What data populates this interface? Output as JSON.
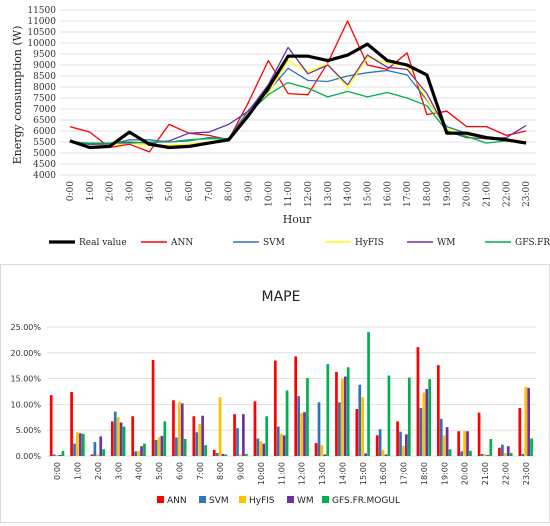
{
  "chart_data": [
    {
      "type": "line",
      "title": "",
      "xlabel": "Hour",
      "ylabel": "Energy consumption (W)",
      "ylim": [
        4000,
        11500
      ],
      "yticks": [
        "4000",
        "4500",
        "5000",
        "5500",
        "6000",
        "6500",
        "7000",
        "7500",
        "8000",
        "8500",
        "9000",
        "9500",
        "10000",
        "10500",
        "11000",
        "11500"
      ],
      "categories": [
        "0:00",
        "1:00",
        "2:00",
        "3:00",
        "4:00",
        "5:00",
        "6:00",
        "7:00",
        "8:00",
        "9:00",
        "10:00",
        "11:00",
        "12:00",
        "13:00",
        "14:00",
        "15:00",
        "16:00",
        "17:00",
        "18:00",
        "19:00",
        "20:00",
        "21:00",
        "22:00",
        "23:00"
      ],
      "grid": true,
      "legend": "bottom",
      "series": [
        {
          "name": "Real value",
          "color": "#000000",
          "values": [
            5550,
            5250,
            5300,
            5950,
            5400,
            5250,
            5300,
            5450,
            5600,
            6700,
            7950,
            9400,
            9400,
            9200,
            9450,
            9950,
            9200,
            9000,
            8550,
            5900,
            5900,
            5700,
            5600,
            5450
          ]
        },
        {
          "name": "ANN",
          "color": "#ff0000",
          "values": [
            6200,
            5950,
            5250,
            5400,
            5050,
            6300,
            5900,
            5800,
            5600,
            7300,
            9200,
            7700,
            7650,
            9100,
            11000,
            9000,
            8800,
            9550,
            6750,
            6900,
            6200,
            6200,
            5800,
            6000
          ]
        },
        {
          "name": "SVM",
          "color": "#2e75b6",
          "values": [
            5550,
            5400,
            5400,
            5600,
            5600,
            5500,
            5550,
            5700,
            5650,
            6950,
            7800,
            8850,
            8300,
            8250,
            8500,
            8650,
            8750,
            8550,
            7400,
            6200,
            5900,
            5650,
            5600,
            5500
          ]
        },
        {
          "name": "HyFIS",
          "color": "#ffff00",
          "values": [
            5500,
            5300,
            5350,
            5450,
            5350,
            5350,
            5400,
            5500,
            5650,
            6800,
            7700,
            9200,
            8700,
            9050,
            7950,
            9350,
            9100,
            8950,
            7450,
            6100,
            5800,
            5700,
            5650,
            5500
          ]
        },
        {
          "name": "WM",
          "color": "#7030a0",
          "values": [
            5500,
            5400,
            5450,
            5500,
            5450,
            5550,
            5900,
            5950,
            6300,
            6900,
            8100,
            9800,
            8600,
            9000,
            8100,
            9450,
            8900,
            8800,
            7700,
            6000,
            5700,
            5650,
            5700,
            6250
          ]
        },
        {
          "name": "GFS.FR.MOGUL",
          "color": "#00b050",
          "values": [
            5500,
            5450,
            5450,
            5450,
            5500,
            5500,
            5600,
            5650,
            5650,
            6800,
            7650,
            8200,
            7950,
            7550,
            7800,
            7550,
            7750,
            7500,
            7150,
            6000,
            5750,
            5450,
            5550,
            5450
          ]
        }
      ]
    },
    {
      "type": "bar",
      "title": "MAPE",
      "xlabel": "",
      "ylabel": "",
      "ylim": [
        0,
        25
      ],
      "yticks": [
        "0.00%",
        "5.00%",
        "10.00%",
        "15.00%",
        "20.00%",
        "25.00%"
      ],
      "categories": [
        "0:00",
        "1:00",
        "2:00",
        "3:00",
        "4:00",
        "5:00",
        "6:00",
        "7:00",
        "8:00",
        "9:00",
        "10:00",
        "11:00",
        "12:00",
        "13:00",
        "14:00",
        "15:00",
        "16:00",
        "17:00",
        "18:00",
        "19:00",
        "20:00",
        "21:00",
        "22:00",
        "23:00"
      ],
      "grid": true,
      "legend": "bottom",
      "series": [
        {
          "name": "ANN",
          "color": "#ff0000",
          "values": [
            11.8,
            12.4,
            0.3,
            6.7,
            7.7,
            18.6,
            10.8,
            7.7,
            1.2,
            8.1,
            10.6,
            18.5,
            19.3,
            2.5,
            16.3,
            9.1,
            4.0,
            6.7,
            21.1,
            17.6,
            4.8,
            8.4,
            1.6,
            9.3
          ]
        },
        {
          "name": "SVM",
          "color": "#2e75b6",
          "values": [
            0.3,
            2.4,
            2.7,
            8.6,
            0.9,
            3.1,
            3.6,
            4.6,
            0.6,
            5.4,
            3.4,
            5.7,
            11.6,
            10.4,
            10.4,
            13.8,
            5.2,
            4.7,
            9.3,
            7.2,
            0.9,
            0.4,
            2.2,
            0.4
          ]
        },
        {
          "name": "HyFIS",
          "color": "#ffc000",
          "values": [
            0.2,
            4.6,
            0.3,
            7.5,
            1.0,
            3.6,
            10.5,
            6.2,
            11.4,
            0.3,
            2.9,
            4.3,
            8.3,
            2.1,
            15.0,
            11.4,
            1.2,
            2.0,
            12.3,
            4.0,
            4.8,
            0.4,
            0.6,
            13.4
          ]
        },
        {
          "name": "WM",
          "color": "#7030a0",
          "values": [
            0.2,
            4.4,
            3.8,
            6.5,
            1.9,
            3.9,
            10.2,
            7.8,
            0.4,
            8.1,
            2.4,
            4.0,
            8.5,
            0.3,
            15.4,
            0.5,
            0.3,
            4.2,
            13.0,
            5.6,
            4.8,
            0.2,
            1.9,
            13.2
          ]
        },
        {
          "name": "GFS.FR.MOGUL",
          "color": "#00b050",
          "values": [
            1.0,
            4.3,
            1.3,
            5.7,
            2.4,
            6.7,
            3.3,
            2.1,
            0.3,
            0.4,
            7.7,
            12.7,
            15.1,
            17.8,
            17.2,
            24.0,
            15.6,
            15.2,
            14.9,
            1.3,
            1.0,
            3.3,
            0.6,
            3.4
          ]
        }
      ]
    }
  ]
}
